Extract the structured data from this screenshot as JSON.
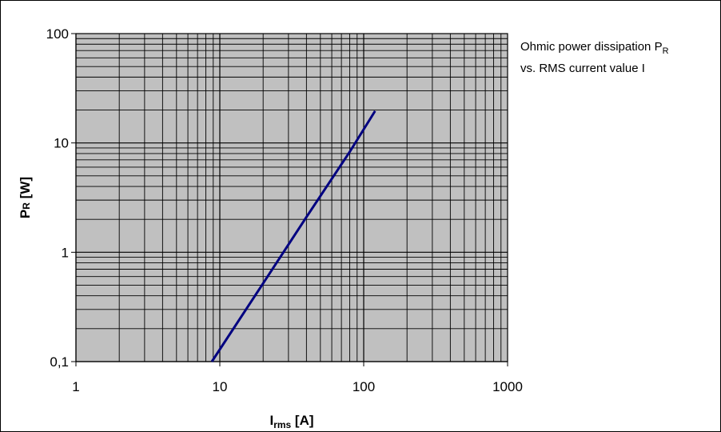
{
  "chart_data": {
    "type": "line",
    "title": "",
    "annotation": {
      "line1_main": "Ohmic power dissipation P",
      "line1_sub": "R",
      "line2": "vs. RMS current value I"
    },
    "xlabel": {
      "main": "I",
      "sub": "rms",
      "unit": " [A]"
    },
    "ylabel": {
      "main": "P",
      "sub": "R",
      "unit": " [W]"
    },
    "xscale": "log",
    "yscale": "log",
    "xlim": [
      1,
      1000
    ],
    "ylim": [
      0.1,
      100
    ],
    "x_ticks": [
      {
        "value": 1,
        "label": "1"
      },
      {
        "value": 10,
        "label": "10"
      },
      {
        "value": 100,
        "label": "100"
      },
      {
        "value": 1000,
        "label": "1000"
      }
    ],
    "y_ticks": [
      {
        "value": 0.1,
        "label": "0,1"
      },
      {
        "value": 1,
        "label": "1"
      },
      {
        "value": 10,
        "label": "10"
      },
      {
        "value": 100,
        "label": "100"
      }
    ],
    "grid": true,
    "legend": "none",
    "series": [
      {
        "color": "#000080",
        "x": [
          8.8,
          20,
          40,
          80,
          120
        ],
        "y": [
          0.1,
          0.52,
          2.1,
          8.3,
          19.6
        ]
      }
    ],
    "colors": {
      "plot_background": "#c0c0c0",
      "grid": "#000000",
      "series": "#000080"
    }
  }
}
